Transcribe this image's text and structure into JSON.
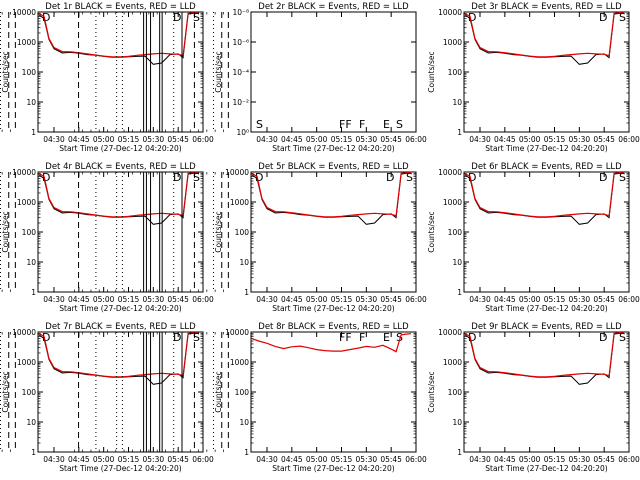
{
  "figure": {
    "background": "#ffffff",
    "colors": {
      "events": "#000000",
      "lld": "#e00000"
    }
  },
  "chart_data": [
    {
      "type": "line",
      "title": "Det 1r BLACK = Events, RED = LLD",
      "xlabel": "Start Time (27-Dec-12 04:20:20)",
      "ylabel": "Counts/sec",
      "x_ticks": [
        "04:30",
        "04:45",
        "05:00",
        "05:15",
        "05:30",
        "05:45",
        "06:00"
      ],
      "y_ticks": [
        "1",
        "10",
        "100",
        "1000",
        "10000"
      ],
      "xlim": [
        "04:20:20",
        "06:00:00"
      ],
      "ylim": [
        1,
        10000
      ],
      "y_scale": "log",
      "flags": [
        "D",
        "D",
        "S"
      ],
      "x": [
        "04:21",
        "04:24",
        "04:27",
        "04:30",
        "04:35",
        "04:40",
        "04:45",
        "04:50",
        "04:55",
        "05:00",
        "05:05",
        "05:10",
        "05:15",
        "05:20",
        "05:25",
        "05:30",
        "05:35",
        "05:40",
        "05:45",
        "05:48",
        "05:51",
        "05:54",
        "05:57"
      ],
      "series": [
        {
          "name": "Events",
          "color": "#000000",
          "values": [
            8000,
            6000,
            1200,
            600,
            430,
            450,
            420,
            380,
            360,
            330,
            310,
            310,
            320,
            330,
            340,
            180,
            200,
            380,
            400,
            300,
            8500,
            9000,
            9000
          ]
        },
        {
          "name": "LLD",
          "color": "#e00000",
          "values": [
            9000,
            7000,
            1300,
            650,
            480,
            470,
            440,
            400,
            370,
            340,
            320,
            320,
            330,
            360,
            380,
            400,
            420,
            400,
            390,
            350,
            9000,
            9500,
            9500
          ]
        }
      ]
    },
    {
      "type": "line",
      "title": "Det 2r BLACK = Events, RED = LLD",
      "xlabel": "Start Time (27-Dec-12 04:20:20)",
      "ylabel": "Counts/sec",
      "x_ticks": [
        "04:30",
        "04:45",
        "05:00",
        "05:15",
        "05:30",
        "05:45",
        "06:00"
      ],
      "y_ticks": [
        "10⁰",
        "10⁻²",
        "10⁻⁴",
        "10⁻⁶",
        "10⁻⁸"
      ],
      "xlim": [
        "04:20:20",
        "06:00:00"
      ],
      "y_scale": "log",
      "flags": [
        "S",
        "FF",
        "F",
        "E",
        "S"
      ],
      "series": []
    },
    {
      "type": "line",
      "title": "Det 3r BLACK = Events, RED = LLD",
      "xlabel": "Start Time (27-Dec-12 04:20:20)",
      "ylabel": "Counts/sec",
      "x_ticks": [
        "04:30",
        "04:45",
        "05:00",
        "05:15",
        "05:30",
        "05:45",
        "06:00"
      ],
      "y_ticks": [
        "1",
        "10",
        "100",
        "1000",
        "10000"
      ],
      "xlim": [
        "04:20:20",
        "06:00:00"
      ],
      "ylim": [
        1,
        10000
      ],
      "y_scale": "log",
      "flags": [
        "D",
        "D",
        "S"
      ],
      "x": [
        "04:21",
        "04:24",
        "04:27",
        "04:30",
        "04:35",
        "04:40",
        "04:45",
        "04:50",
        "04:55",
        "05:00",
        "05:05",
        "05:10",
        "05:15",
        "05:20",
        "05:25",
        "05:30",
        "05:35",
        "05:40",
        "05:45",
        "05:48",
        "05:51",
        "05:54",
        "05:57"
      ],
      "series": [
        {
          "name": "Events",
          "color": "#000000",
          "values": [
            8000,
            6000,
            1200,
            600,
            430,
            450,
            420,
            380,
            360,
            330,
            310,
            310,
            320,
            330,
            340,
            180,
            200,
            380,
            400,
            300,
            8500,
            9000,
            9000
          ]
        },
        {
          "name": "LLD",
          "color": "#e00000",
          "values": [
            9000,
            7000,
            1300,
            650,
            480,
            470,
            440,
            400,
            370,
            340,
            320,
            320,
            330,
            360,
            380,
            400,
            420,
            400,
            390,
            350,
            9000,
            9500,
            9500
          ]
        }
      ]
    },
    {
      "type": "line",
      "title": "Det 4r BLACK = Events, RED = LLD",
      "xlabel": "Start Time (27-Dec-12 04:20:20)",
      "ylabel": "Counts/sec",
      "x_ticks": [
        "04:30",
        "04:45",
        "05:00",
        "05:15",
        "05:30",
        "05:45",
        "06:00"
      ],
      "y_ticks": [
        "1",
        "10",
        "100",
        "1000",
        "10000"
      ],
      "xlim": [
        "04:20:20",
        "06:00:00"
      ],
      "ylim": [
        1,
        10000
      ],
      "y_scale": "log",
      "flags": [
        "D",
        "D",
        "S"
      ],
      "x": [
        "04:21",
        "04:24",
        "04:27",
        "04:30",
        "04:35",
        "04:40",
        "04:45",
        "04:50",
        "04:55",
        "05:00",
        "05:05",
        "05:10",
        "05:15",
        "05:20",
        "05:25",
        "05:30",
        "05:35",
        "05:40",
        "05:45",
        "05:48",
        "05:51",
        "05:54",
        "05:57"
      ],
      "series": [
        {
          "name": "Events",
          "color": "#000000",
          "values": [
            8000,
            6000,
            1200,
            600,
            430,
            450,
            420,
            380,
            360,
            330,
            310,
            310,
            320,
            330,
            340,
            180,
            200,
            380,
            400,
            300,
            8500,
            9000,
            9000
          ]
        },
        {
          "name": "LLD",
          "color": "#e00000",
          "values": [
            9000,
            7000,
            1300,
            650,
            480,
            470,
            440,
            400,
            370,
            340,
            320,
            320,
            330,
            360,
            380,
            400,
            420,
            400,
            390,
            350,
            9000,
            9500,
            9500
          ]
        }
      ]
    },
    {
      "type": "line",
      "title": "Det 5r BLACK = Events, RED = LLD",
      "xlabel": "Start Time (27-Dec-12 04:20:20)",
      "ylabel": "Counts/sec",
      "x_ticks": [
        "04:30",
        "04:45",
        "05:00",
        "05:15",
        "05:30",
        "05:45",
        "06:00"
      ],
      "y_ticks": [
        "1",
        "10",
        "100",
        "1000",
        "10000"
      ],
      "xlim": [
        "04:20:20",
        "06:00:00"
      ],
      "ylim": [
        1,
        10000
      ],
      "y_scale": "log",
      "flags": [
        "D",
        "D",
        "S"
      ],
      "x": [
        "04:21",
        "04:24",
        "04:27",
        "04:30",
        "04:35",
        "04:40",
        "04:45",
        "04:50",
        "04:55",
        "05:00",
        "05:05",
        "05:10",
        "05:15",
        "05:20",
        "05:25",
        "05:30",
        "05:35",
        "05:40",
        "05:45",
        "05:48",
        "05:51",
        "05:54",
        "05:57"
      ],
      "series": [
        {
          "name": "Events",
          "color": "#000000",
          "values": [
            8000,
            6000,
            1200,
            600,
            430,
            450,
            420,
            380,
            360,
            330,
            310,
            310,
            320,
            330,
            340,
            180,
            200,
            380,
            400,
            300,
            8500,
            9000,
            9000
          ]
        },
        {
          "name": "LLD",
          "color": "#e00000",
          "values": [
            9000,
            7000,
            1300,
            650,
            480,
            470,
            440,
            400,
            370,
            340,
            320,
            320,
            330,
            360,
            380,
            400,
            420,
            400,
            390,
            350,
            9000,
            9500,
            9500
          ]
        }
      ]
    },
    {
      "type": "line",
      "title": "Det 6r BLACK = Events, RED = LLD",
      "xlabel": "Start Time (27-Dec-12 04:20:20)",
      "ylabel": "Counts/sec",
      "x_ticks": [
        "04:30",
        "04:45",
        "05:00",
        "05:15",
        "05:30",
        "05:45",
        "06:00"
      ],
      "y_ticks": [
        "1",
        "10",
        "100",
        "1000",
        "10000"
      ],
      "xlim": [
        "04:20:20",
        "06:00:00"
      ],
      "ylim": [
        1,
        10000
      ],
      "y_scale": "log",
      "flags": [
        "D",
        "D",
        "S"
      ],
      "x": [
        "04:21",
        "04:24",
        "04:27",
        "04:30",
        "04:35",
        "04:40",
        "04:45",
        "04:50",
        "04:55",
        "05:00",
        "05:05",
        "05:10",
        "05:15",
        "05:20",
        "05:25",
        "05:30",
        "05:35",
        "05:40",
        "05:45",
        "05:48",
        "05:51",
        "05:54",
        "05:57"
      ],
      "series": [
        {
          "name": "Events",
          "color": "#000000",
          "values": [
            8000,
            6000,
            1200,
            600,
            430,
            450,
            420,
            380,
            360,
            330,
            310,
            310,
            320,
            330,
            340,
            180,
            200,
            380,
            400,
            300,
            8500,
            9000,
            9000
          ]
        },
        {
          "name": "LLD",
          "color": "#e00000",
          "values": [
            9000,
            7000,
            1300,
            650,
            480,
            470,
            440,
            400,
            370,
            340,
            320,
            320,
            330,
            360,
            380,
            400,
            420,
            400,
            390,
            350,
            9000,
            9500,
            9500
          ]
        }
      ]
    },
    {
      "type": "line",
      "title": "Det 7r BLACK = Events, RED = LLD",
      "xlabel": "Start Time (27-Dec-12 04:20:20)",
      "ylabel": "Counts/sec",
      "x_ticks": [
        "04:30",
        "04:45",
        "05:00",
        "05:15",
        "05:30",
        "05:45",
        "06:00"
      ],
      "y_ticks": [
        "1",
        "10",
        "100",
        "1000",
        "10000"
      ],
      "xlim": [
        "04:20:20",
        "06:00:00"
      ],
      "ylim": [
        1,
        10000
      ],
      "y_scale": "log",
      "flags": [
        "D",
        "D",
        "S"
      ],
      "x": [
        "04:21",
        "04:24",
        "04:27",
        "04:30",
        "04:35",
        "04:40",
        "04:45",
        "04:50",
        "04:55",
        "05:00",
        "05:05",
        "05:10",
        "05:15",
        "05:20",
        "05:25",
        "05:30",
        "05:35",
        "05:40",
        "05:45",
        "05:48",
        "05:51",
        "05:54",
        "05:57"
      ],
      "series": [
        {
          "name": "Events",
          "color": "#000000",
          "values": [
            8000,
            6000,
            1200,
            600,
            430,
            450,
            420,
            380,
            360,
            330,
            310,
            310,
            320,
            330,
            340,
            180,
            200,
            380,
            400,
            300,
            8500,
            9000,
            9000
          ]
        },
        {
          "name": "LLD",
          "color": "#e00000",
          "values": [
            9000,
            7000,
            1300,
            650,
            480,
            470,
            440,
            400,
            370,
            340,
            320,
            320,
            330,
            360,
            380,
            400,
            420,
            400,
            390,
            350,
            9000,
            9500,
            9500
          ]
        }
      ]
    },
    {
      "type": "line",
      "title": "Det 8r BLACK = Events, RED = LLD",
      "xlabel": "Start Time (27-Dec-12 04:20:20)",
      "ylabel": "Counts/sec",
      "x_ticks": [
        "04:30",
        "04:45",
        "05:00",
        "05:15",
        "05:30",
        "05:45",
        "06:00"
      ],
      "y_ticks": [
        "1",
        "10",
        "100",
        "1000",
        "10000"
      ],
      "xlim": [
        "04:20:20",
        "06:00:00"
      ],
      "ylim": [
        1,
        10000
      ],
      "y_scale": "log",
      "flags": [
        "FF",
        "F",
        "E",
        "S"
      ],
      "x": [
        "04:21",
        "04:25",
        "04:30",
        "04:35",
        "04:40",
        "04:45",
        "04:50",
        "04:55",
        "05:00",
        "05:05",
        "05:10",
        "05:15",
        "05:20",
        "05:25",
        "05:30",
        "05:35",
        "05:40",
        "05:45",
        "05:48",
        "05:51",
        "05:54",
        "05:57"
      ],
      "series": [
        {
          "name": "LLD",
          "color": "#e00000",
          "values": [
            6000,
            5000,
            4200,
            3300,
            2800,
            3200,
            3400,
            3000,
            2600,
            2400,
            2300,
            2300,
            2600,
            2900,
            3300,
            3100,
            3600,
            2700,
            2200,
            8000,
            8500,
            8800
          ]
        }
      ]
    },
    {
      "type": "line",
      "title": "Det 9r BLACK = Events, RED = LLD",
      "xlabel": "Start Time (27-Dec-12 04:20:20)",
      "ylabel": "Counts/sec",
      "x_ticks": [
        "04:30",
        "04:45",
        "05:00",
        "05:15",
        "05:30",
        "05:45",
        "06:00"
      ],
      "y_ticks": [
        "1",
        "10",
        "100",
        "1000",
        "10000"
      ],
      "xlim": [
        "04:20:20",
        "06:00:00"
      ],
      "ylim": [
        1,
        10000
      ],
      "y_scale": "log",
      "flags": [
        "D",
        "D",
        "S"
      ],
      "x": [
        "04:21",
        "04:24",
        "04:27",
        "04:30",
        "04:35",
        "04:40",
        "04:45",
        "04:50",
        "04:55",
        "05:00",
        "05:05",
        "05:10",
        "05:15",
        "05:20",
        "05:25",
        "05:30",
        "05:35",
        "05:40",
        "05:45",
        "05:48",
        "05:51",
        "05:54",
        "05:57"
      ],
      "series": [
        {
          "name": "Events",
          "color": "#000000",
          "values": [
            8000,
            6000,
            1200,
            600,
            430,
            450,
            420,
            380,
            360,
            330,
            310,
            310,
            320,
            330,
            340,
            180,
            200,
            380,
            400,
            300,
            8500,
            9000,
            9000
          ]
        },
        {
          "name": "LLD",
          "color": "#e00000",
          "values": [
            9000,
            7000,
            1300,
            650,
            480,
            470,
            440,
            400,
            370,
            340,
            320,
            320,
            330,
            360,
            380,
            400,
            420,
            400,
            390,
            350,
            9000,
            9500,
            9500
          ]
        }
      ]
    }
  ]
}
